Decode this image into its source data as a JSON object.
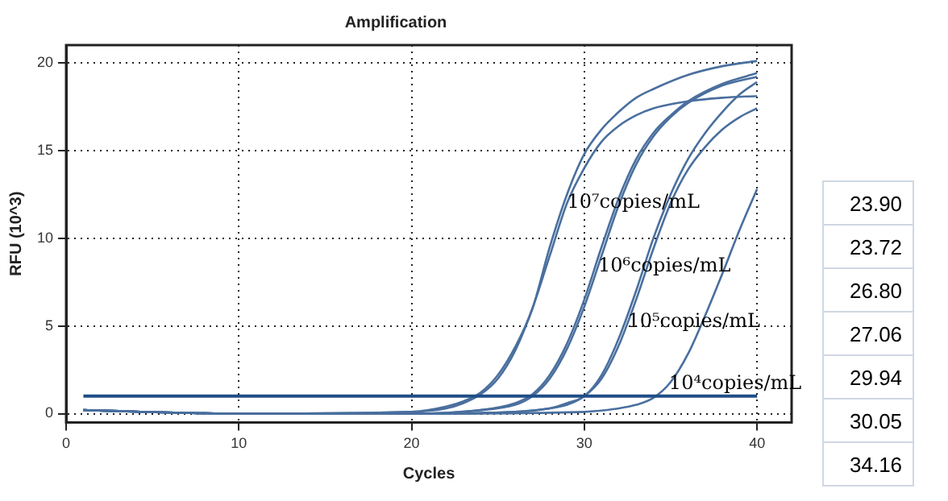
{
  "chart_data": {
    "type": "line",
    "title": "Amplification",
    "xlabel": "Cycles",
    "ylabel": "RFU (10^3)",
    "xlim": [
      0,
      42
    ],
    "xticks": [
      0,
      10,
      20,
      30,
      40
    ],
    "ylim": [
      -0.5,
      21
    ],
    "yticks": [
      0,
      5,
      10,
      15,
      20
    ],
    "grid": true,
    "legend": false,
    "marker": "none",
    "line_style": "solid",
    "ref_lines": [
      {
        "axis": "y",
        "value": 1,
        "color": "#1f4e87"
      }
    ],
    "series": [
      {
        "color": "#4a6f9e",
        "x": [
          1,
          10,
          20,
          22,
          23,
          24,
          25,
          26,
          27,
          28,
          29,
          30,
          31,
          32,
          33,
          34,
          36,
          38,
          40
        ],
        "values": [
          0.2,
          0,
          0.1,
          0.4,
          0.7,
          1.2,
          2.2,
          3.8,
          6,
          9.5,
          12.5,
          14.8,
          16.2,
          17.2,
          18,
          18.5,
          19.3,
          19.8,
          20.1
        ]
      },
      {
        "color": "#4a6f9e",
        "x": [
          1,
          10,
          20,
          22,
          23,
          24,
          25,
          26,
          27,
          28,
          29,
          30,
          31,
          32,
          33,
          34,
          36,
          38,
          40
        ],
        "values": [
          0.2,
          0,
          0.1,
          0.3,
          0.6,
          1.1,
          2,
          3.6,
          6,
          9,
          12,
          14,
          15.5,
          16.4,
          17,
          17.4,
          17.8,
          18,
          18.1
        ]
      },
      {
        "color": "#4a6f9e",
        "x": [
          1,
          10,
          20,
          24,
          26,
          27,
          28,
          29,
          30,
          31,
          32,
          33,
          34,
          35,
          36,
          38,
          40
        ],
        "values": [
          0.2,
          0,
          0,
          0.2,
          0.6,
          1.1,
          2.2,
          4,
          6.5,
          9.5,
          12.3,
          14.5,
          16,
          17,
          17.8,
          18.8,
          19.4
        ]
      },
      {
        "color": "#4a6f9e",
        "x": [
          1,
          10,
          20,
          24,
          26,
          27,
          28,
          29,
          30,
          31,
          32,
          33,
          34,
          35,
          36,
          38,
          40
        ],
        "values": [
          0.2,
          0,
          0,
          0.2,
          0.5,
          1,
          2,
          3.7,
          6.1,
          9,
          11.9,
          14.2,
          15.8,
          16.9,
          17.7,
          18.7,
          19.2
        ]
      },
      {
        "color": "#4a6f9e",
        "x": [
          1,
          10,
          20,
          26,
          28,
          29,
          30,
          31,
          32,
          33,
          34,
          35,
          36,
          37,
          38,
          39,
          40
        ],
        "values": [
          0.2,
          0,
          0,
          0.1,
          0.3,
          0.6,
          1,
          2.2,
          4.3,
          7,
          10,
          12.5,
          14.5,
          16,
          17.2,
          18.2,
          18.9
        ]
      },
      {
        "color": "#4a6f9e",
        "x": [
          1,
          10,
          20,
          26,
          28,
          29,
          30,
          31,
          32,
          33,
          34,
          35,
          36,
          37,
          38,
          39,
          40
        ],
        "values": [
          0.2,
          0,
          0,
          0.1,
          0.3,
          0.5,
          1,
          2,
          3.9,
          6.5,
          9.4,
          12,
          13.9,
          15.2,
          16.2,
          16.9,
          17.4
        ]
      },
      {
        "color": "#4a6f9e",
        "x": [
          1,
          10,
          20,
          30,
          32,
          33,
          34,
          35,
          36,
          37,
          38,
          39,
          40
        ],
        "values": [
          0.2,
          0,
          0,
          0.1,
          0.3,
          0.5,
          0.9,
          1.8,
          3.4,
          5.6,
          8,
          10.5,
          12.8
        ]
      }
    ],
    "annotations": [
      {
        "text": "10⁷copies/mL",
        "x": 29,
        "y": 12
      },
      {
        "text": "10⁶copies/mL",
        "x": 30.8,
        "y": 8.4
      },
      {
        "text": "10⁵copies/mL",
        "x": 32.5,
        "y": 5.2
      },
      {
        "text": "10⁴copies/mL",
        "x": 34.9,
        "y": 1.7
      },
      "23.90",
      "23.72",
      "26.80",
      "27.06",
      "29.94",
      "30.05",
      "34.16"
    ]
  }
}
